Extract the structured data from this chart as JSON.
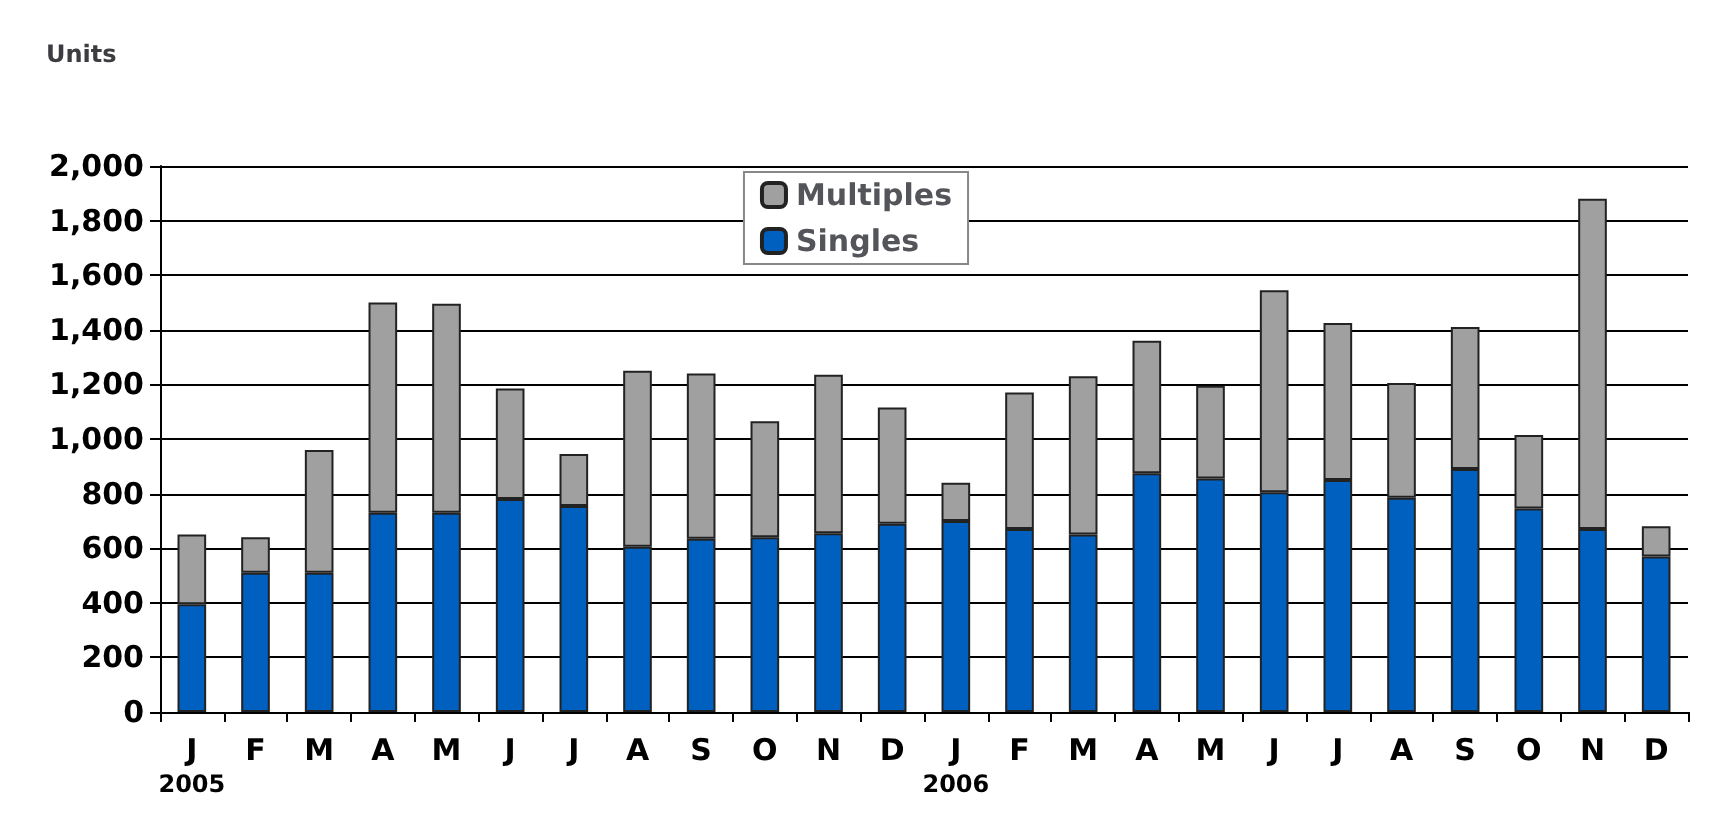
{
  "chart_data": {
    "type": "bar",
    "stacked": true,
    "ylabel": "Units",
    "categories": [
      "J\n2005",
      "F",
      "M",
      "A",
      "M",
      "J",
      "J",
      "A",
      "S",
      "O",
      "N",
      "D",
      "J\n2006",
      "F",
      "M",
      "A",
      "M",
      "J",
      "J",
      "A",
      "S",
      "O",
      "N",
      "D"
    ],
    "series": [
      {
        "name": "Singles",
        "color": "#0060c0",
        "values": [
          395,
          510,
          510,
          730,
          730,
          780,
          755,
          605,
          635,
          640,
          655,
          690,
          700,
          670,
          650,
          875,
          855,
          805,
          850,
          785,
          890,
          745,
          670,
          570
        ]
      },
      {
        "name": "Multiples",
        "color": "#a0a0a0",
        "values": [
          255,
          130,
          450,
          770,
          765,
          405,
          190,
          645,
          605,
          425,
          580,
          425,
          140,
          500,
          580,
          485,
          340,
          740,
          575,
          420,
          520,
          270,
          1210,
          110
        ]
      }
    ],
    "ylim": [
      0,
      2000
    ],
    "yticks": [
      0,
      200,
      400,
      600,
      800,
      {
        "value": 1000,
        "label": "1,000"
      },
      {
        "value": 1200,
        "label": "1,200"
      },
      {
        "value": 1400,
        "label": "1,400"
      },
      {
        "value": 1600,
        "label": "1,600"
      },
      {
        "value": 1800,
        "label": "1,800"
      },
      {
        "value": 2000,
        "label": "2,000"
      }
    ],
    "grid": "y",
    "legend": "top"
  }
}
